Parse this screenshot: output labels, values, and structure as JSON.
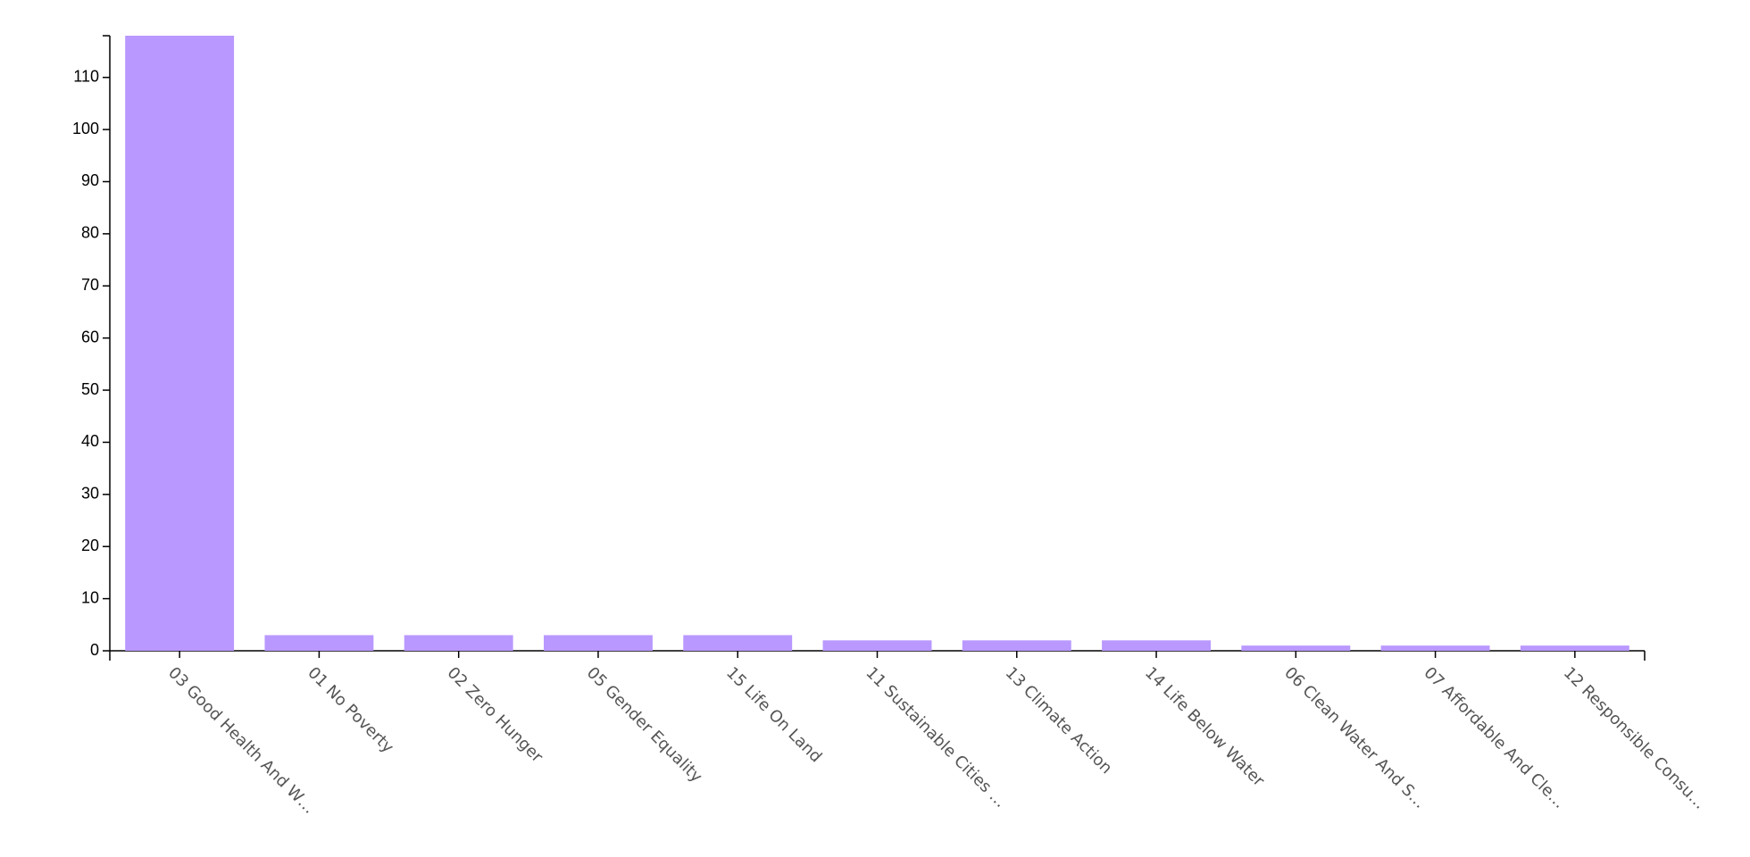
{
  "chart_data": {
    "type": "bar",
    "categories": [
      "03 Good Health And W…",
      "01 No Poverty",
      "02 Zero Hunger",
      "05 Gender Equality",
      "15 Life On Land",
      "11 Sustainable Cities …",
      "13 Climate Action",
      "14 Life Below Water",
      "06 Clean Water And S…",
      "07 Affordable And Cle…",
      "12 Responsible Consu…"
    ],
    "values": [
      118,
      3,
      3,
      3,
      3,
      2,
      2,
      2,
      1,
      1,
      1
    ],
    "color": "#b998ff",
    "ylim": [
      0,
      118
    ],
    "yticks": [
      0,
      10,
      20,
      30,
      40,
      50,
      60,
      70,
      80,
      90,
      100,
      110
    ],
    "grid": false
  }
}
